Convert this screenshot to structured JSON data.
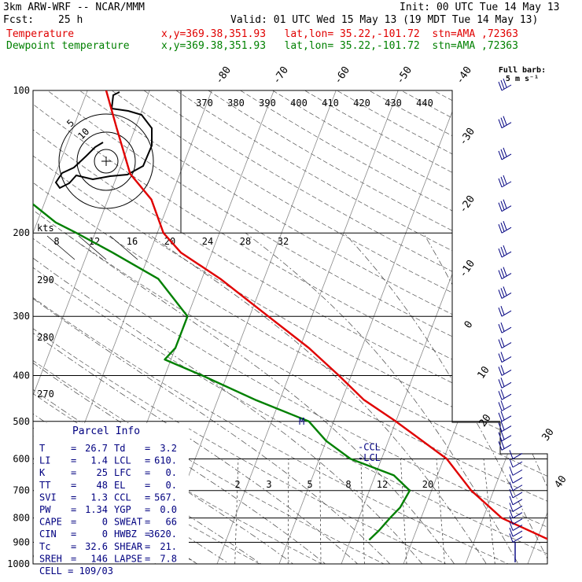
{
  "header": {
    "model": "3km ARW-WRF -- NCAR/MMM",
    "init": "Init: 00 UTC Tue 14 May 13",
    "fcst_label": "Fcst:",
    "fcst_value": "25 h",
    "valid": "Valid: 01 UTC Wed 15 May 13 (19 MDT Tue 14 May 13)",
    "temp_label": "Temperature",
    "temp_info": "x,y=369.38,351.93   lat,lon= 35.22,-101.72  stn=AMA ,72363",
    "dew_label": "Dewpoint temperature",
    "dew_info": "x,y=369.38,351.93   lat,lon= 35.22,-101.72  stn=AMA ,72363"
  },
  "colors": {
    "temperature": "#e00000",
    "dewpoint": "#008000",
    "parcel_text": "#000080",
    "wind_barbs": "#000080"
  },
  "barb_legend": {
    "line1": "Full barb:",
    "line2": "5 m s⁻¹"
  },
  "chart_data": {
    "type": "line",
    "title": "",
    "y_axis": {
      "scale": "log",
      "range": [
        1000,
        100
      ],
      "ticks": [
        "100",
        "200",
        "300",
        "400",
        "500",
        "600",
        "700",
        "800",
        "900",
        "1000"
      ]
    },
    "isotherm_labels": [
      "-80",
      "-70",
      "-60",
      "-50",
      "-40",
      "-30",
      "-20",
      "-10",
      "0",
      "10",
      "20",
      "30",
      "40"
    ],
    "theta_labels": [
      "370",
      "380",
      "390",
      "400",
      "410",
      "420",
      "430",
      "440"
    ],
    "theta_side_labels": [
      "290",
      "280",
      "270"
    ],
    "mixing_ratio_labels": [
      "2",
      "3",
      "5",
      "8",
      "12",
      "20"
    ],
    "hodo_speed_labels": [
      "8",
      "12",
      "16",
      "20",
      "24",
      "28",
      "32"
    ],
    "hodo_units": "kts",
    "hodo_ring_labels": [
      "5",
      "10"
    ],
    "series": [
      {
        "name": "Temperature",
        "points": [
          [
            890,
            32
          ],
          [
            800,
            23
          ],
          [
            700,
            16.4
          ],
          [
            600,
            10.5
          ],
          [
            500,
            0
          ],
          [
            450,
            -6.5
          ],
          [
            400,
            -12
          ],
          [
            350,
            -18.5
          ],
          [
            300,
            -27
          ],
          [
            250,
            -37
          ],
          [
            220,
            -45
          ],
          [
            200,
            -49
          ],
          [
            170,
            -53
          ],
          [
            150,
            -58
          ],
          [
            120,
            -63
          ],
          [
            100,
            -67
          ]
        ]
      },
      {
        "name": "Dewpoint temperature",
        "points": [
          [
            890,
            3
          ],
          [
            850,
            4
          ],
          [
            800,
            5
          ],
          [
            760,
            6
          ],
          [
            700,
            6.5
          ],
          [
            650,
            3
          ],
          [
            600,
            -5
          ],
          [
            550,
            -10
          ],
          [
            500,
            -14
          ],
          [
            450,
            -24
          ],
          [
            400,
            -34
          ],
          [
            370,
            -41
          ],
          [
            350,
            -40
          ],
          [
            300,
            -40
          ],
          [
            250,
            -47
          ],
          [
            220,
            -56
          ],
          [
            200,
            -63
          ],
          [
            190,
            -67
          ],
          [
            170,
            -73
          ],
          [
            150,
            -76
          ],
          [
            130,
            -77
          ],
          [
            100,
            -80
          ]
        ]
      }
    ],
    "markers": [
      {
        "label": "M",
        "pressure": 500
      },
      {
        "label": "-CCL",
        "pressure": 567
      },
      {
        "label": "-LCL",
        "pressure": 610
      }
    ],
    "wind_barbs_pressures": [
      100,
      120,
      140,
      160,
      180,
      200,
      225,
      250,
      275,
      300,
      325,
      350,
      375,
      400,
      425,
      450,
      475,
      500,
      525,
      550,
      575,
      600,
      625,
      650,
      675,
      700,
      725,
      750,
      775,
      800,
      825,
      850,
      875,
      900
    ]
  },
  "parcel": {
    "title": "Parcel Info",
    "rows": [
      [
        "T",
        "26.7",
        "Td",
        "3.2"
      ],
      [
        "LI",
        "1.4",
        "LCL",
        "610."
      ],
      [
        "K",
        "25",
        "LFC",
        "0."
      ],
      [
        "TT",
        "48",
        "EL",
        "0."
      ],
      [
        "SVI",
        "1.3",
        "CCL",
        "567."
      ],
      [
        "PW",
        "1.34",
        "YGP",
        "0.0"
      ],
      [
        "CAPE",
        "0",
        "SWEAT",
        "66"
      ],
      [
        "CIN",
        "0",
        "HWBZ",
        "3620."
      ],
      [
        "Tc",
        "32.6",
        "SHEAR",
        "21."
      ],
      [
        "SREH",
        "146",
        "LAPSE",
        "7.8"
      ]
    ],
    "cell": "CELL = 109/03"
  }
}
